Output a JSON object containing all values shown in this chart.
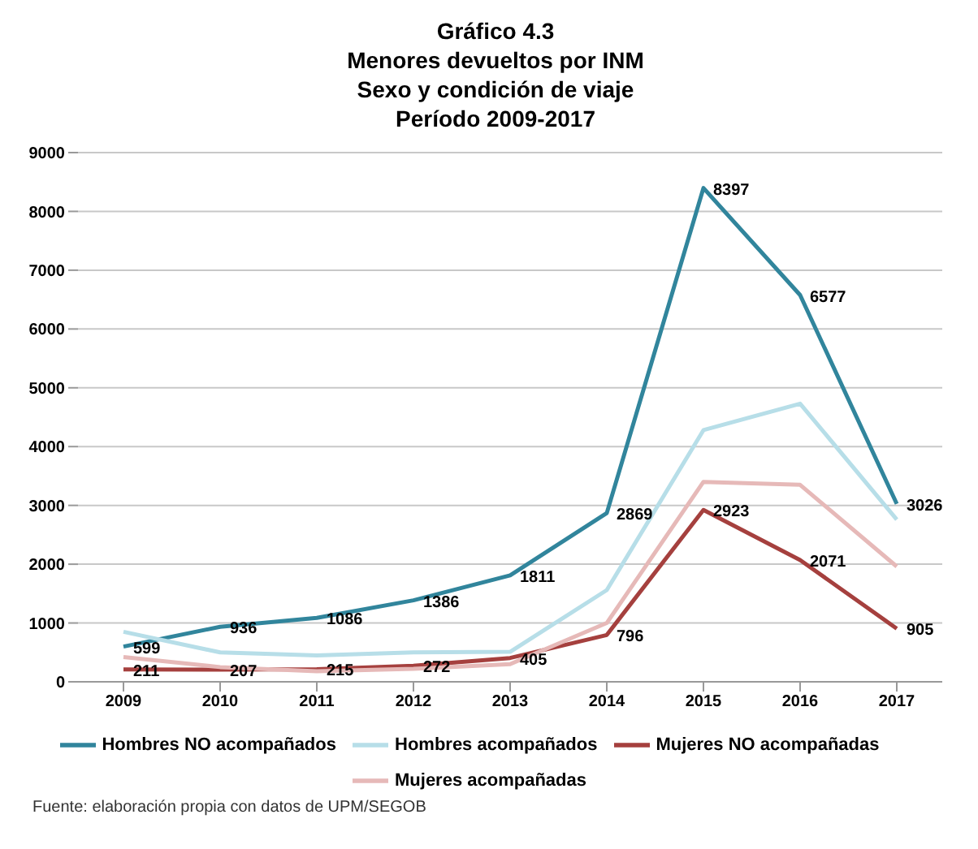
{
  "chart_data": {
    "type": "line",
    "title": "Gráfico 4.3",
    "subtitle": "Menores devueltos por INM\nSexo y condición de viaje\nPeríodo 2009-2017",
    "categories": [
      "2009",
      "2010",
      "2011",
      "2012",
      "2013",
      "2014",
      "2015",
      "2016",
      "2017"
    ],
    "series": [
      {
        "name": "Mujeres NO acompañadas",
        "color": "#a5403e",
        "values": [
          211,
          207,
          215,
          272,
          405,
          796,
          2923,
          2071,
          905
        ],
        "value_labels": [
          "211",
          "207",
          "215",
          "272",
          "405",
          "796",
          "2923",
          "2071",
          "905"
        ]
      },
      {
        "name": "Mujeres acompañadas",
        "color": "#e6b9b8",
        "values": [
          420,
          250,
          180,
          220,
          300,
          1000,
          3400,
          3350,
          1960
        ]
      },
      {
        "name": "Hombres NO acompañados",
        "color": "#31859c",
        "values": [
          599,
          936,
          1086,
          1386,
          1811,
          2869,
          8397,
          6577,
          3026
        ],
        "value_labels": [
          "599",
          "936",
          "1086",
          "1386",
          "1811",
          "2869",
          "8397",
          "6577",
          "3026"
        ]
      },
      {
        "name": "Hombres acompañados",
        "color": "#b7dee8",
        "values": [
          850,
          500,
          450,
          500,
          510,
          1560,
          4280,
          4730,
          2760
        ]
      }
    ],
    "ylim": [
      0,
      9000
    ],
    "yticks": [
      0,
      1000,
      2000,
      3000,
      4000,
      5000,
      6000,
      7000,
      8000,
      9000
    ],
    "grid": "y",
    "legend": "bottom",
    "marker": "none",
    "line_style": "solid",
    "annotations": [
      "Fuente: elaboración propia con datos de UPM/SEGOB"
    ]
  }
}
